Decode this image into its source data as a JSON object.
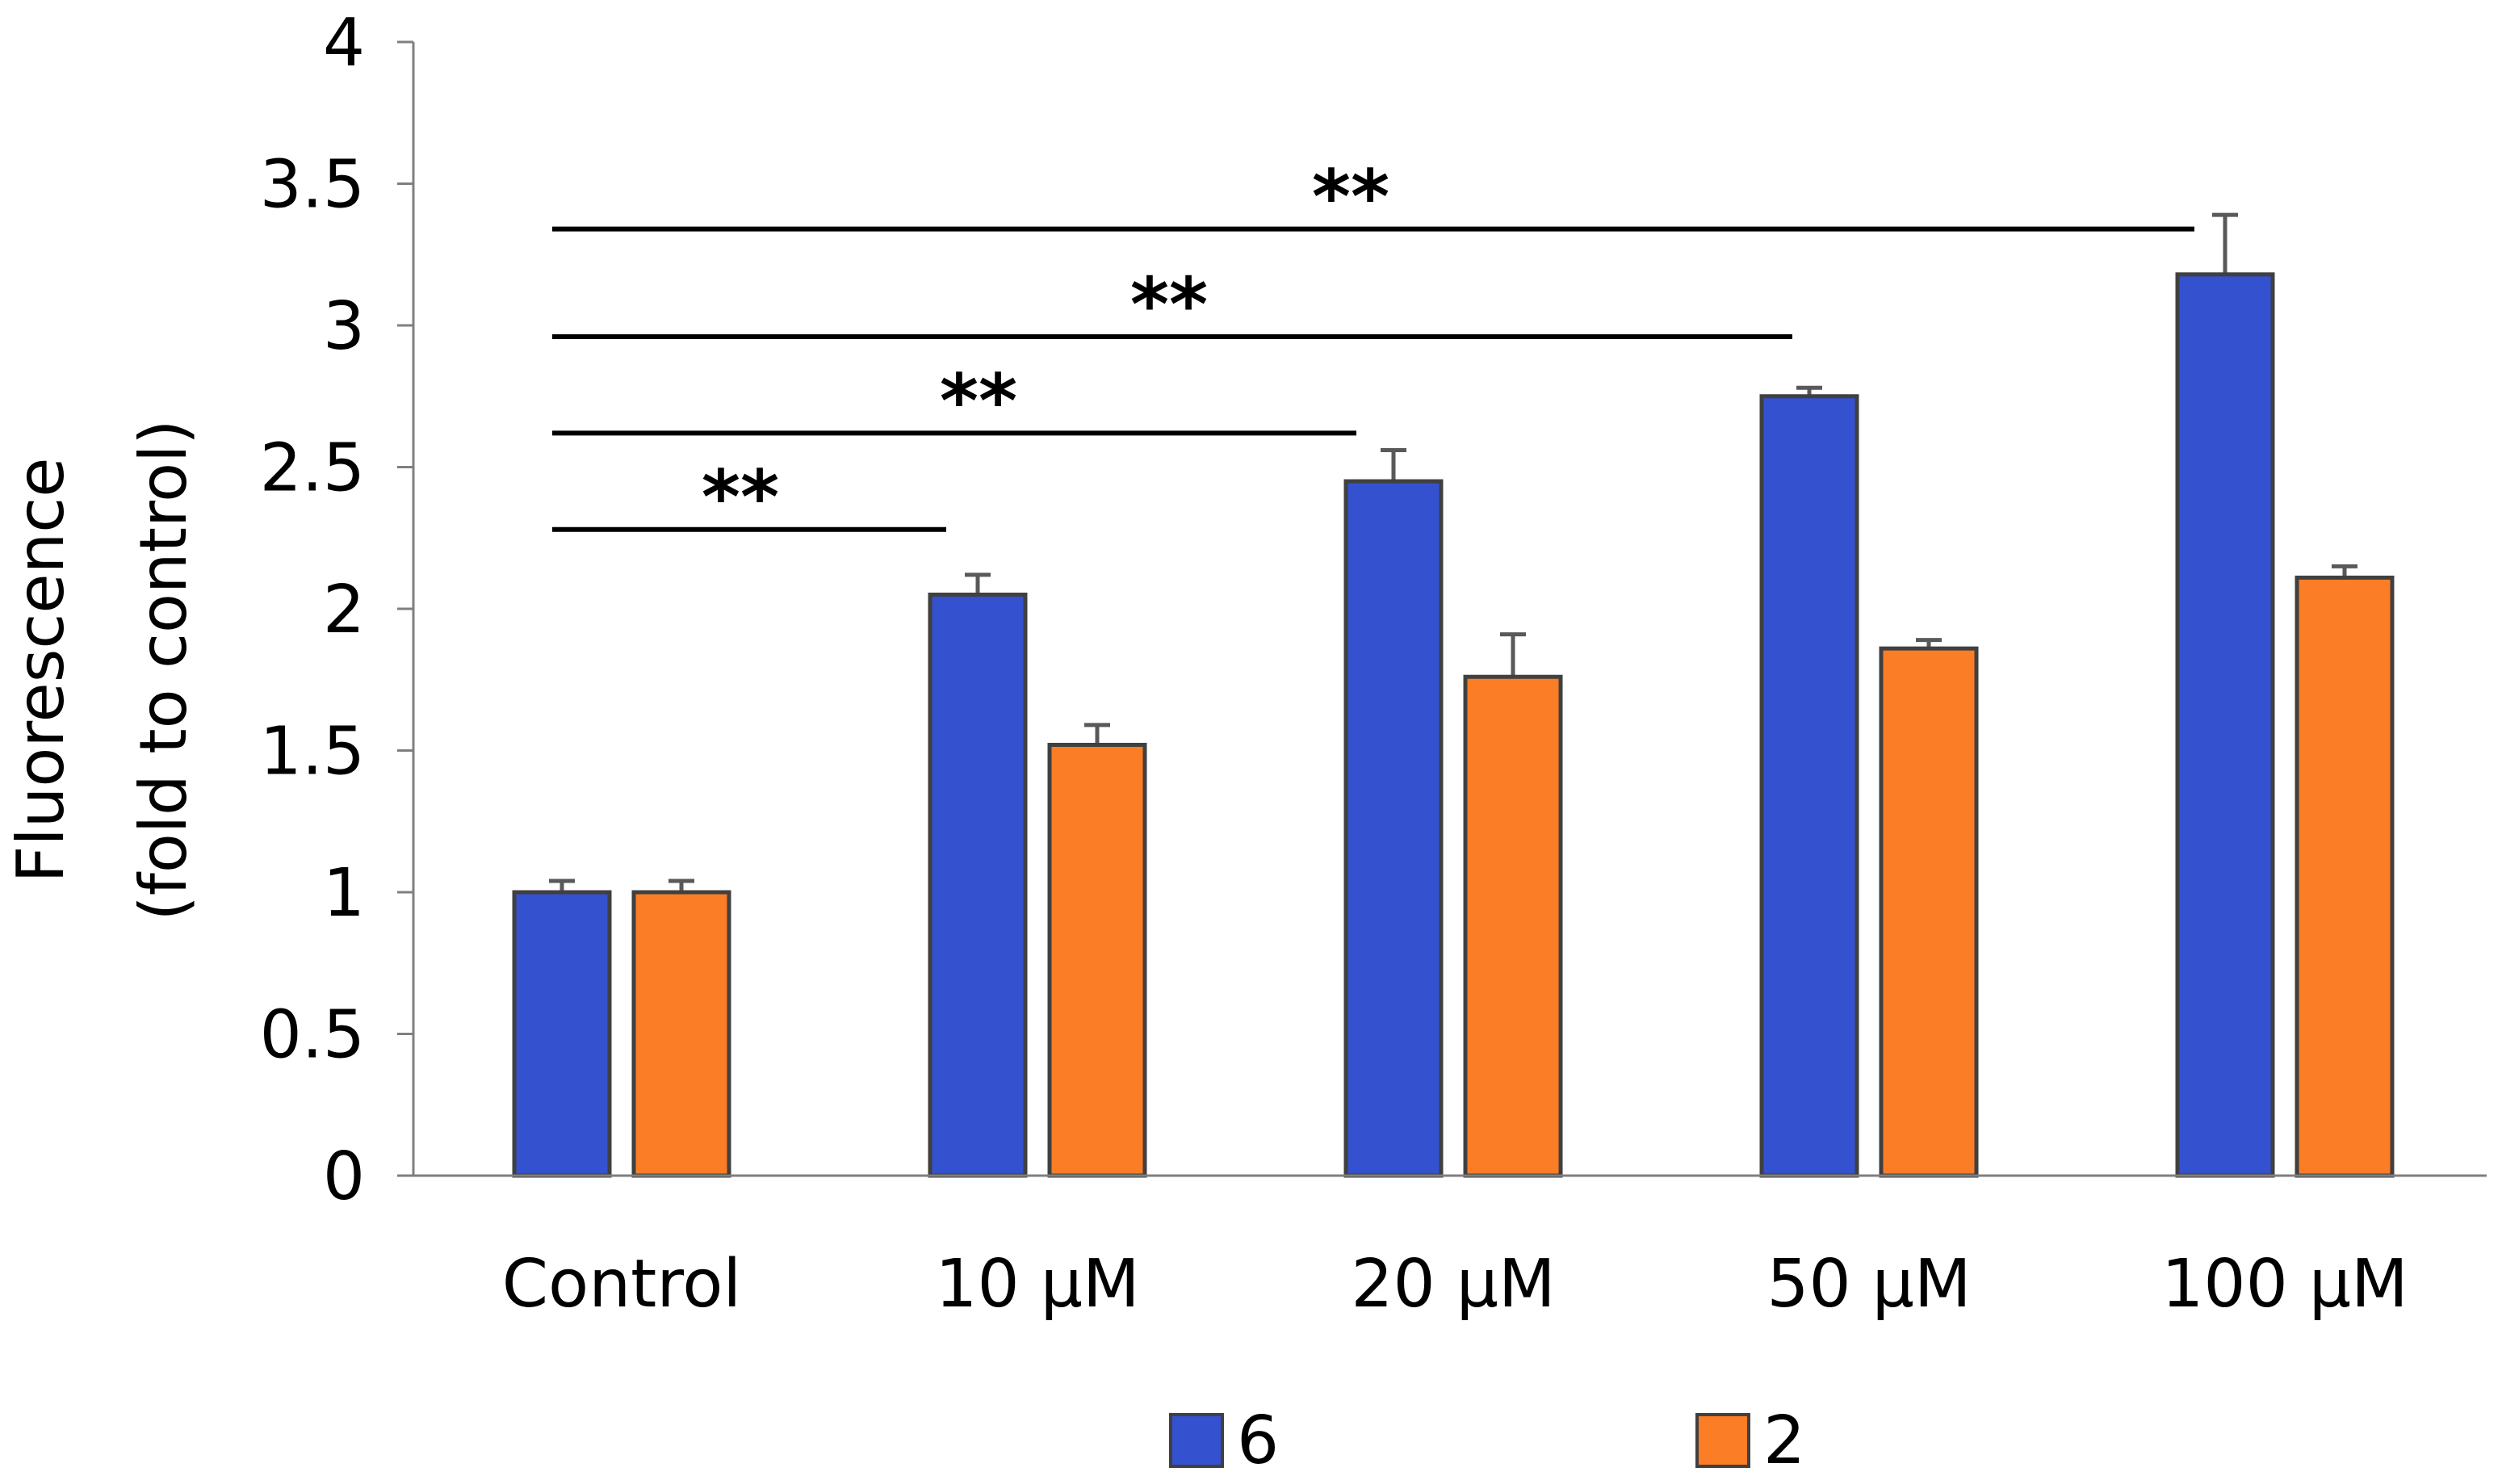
{
  "chart_data": {
    "type": "bar",
    "title": "",
    "xlabel": "",
    "ylabel": "Fluorescence (fold to control)",
    "ylabel_lines": [
      "Fluorescence",
      "(fold to control)"
    ],
    "ylim": [
      0,
      4
    ],
    "yticks": [
      0,
      0.5,
      1,
      1.5,
      2,
      2.5,
      3,
      3.5,
      4
    ],
    "ytick_labels": [
      "0",
      "0.5",
      "1",
      "1.5",
      "2",
      "2.5",
      "3",
      "3.5",
      "4"
    ],
    "grid": false,
    "categories": [
      "Control",
      "10 μM",
      "20 μM",
      "50 μM",
      "100 μM"
    ],
    "series": [
      {
        "name": "6",
        "color": "#3451CF",
        "values": [
          1.0,
          2.05,
          2.45,
          2.75,
          3.18
        ],
        "errors": [
          0.04,
          0.07,
          0.11,
          0.03,
          0.21
        ]
      },
      {
        "name": "2",
        "color": "#FB7D25",
        "values": [
          1.0,
          1.52,
          1.76,
          1.86,
          2.11
        ],
        "errors": [
          0.04,
          0.07,
          0.15,
          0.03,
          0.04
        ]
      }
    ],
    "legend": {
      "position": "bottom",
      "entries": [
        "6",
        "2"
      ]
    },
    "significance": [
      {
        "from": "Control",
        "to": "10 μM",
        "label": "**",
        "y": 2.28
      },
      {
        "from": "Control",
        "to": "20 μM",
        "label": "**",
        "y": 2.62
      },
      {
        "from": "Control",
        "to": "50 μM",
        "label": "**",
        "y": 2.96
      },
      {
        "from": "Control",
        "to": "100 μM",
        "label": "**",
        "y": 3.34
      }
    ]
  }
}
